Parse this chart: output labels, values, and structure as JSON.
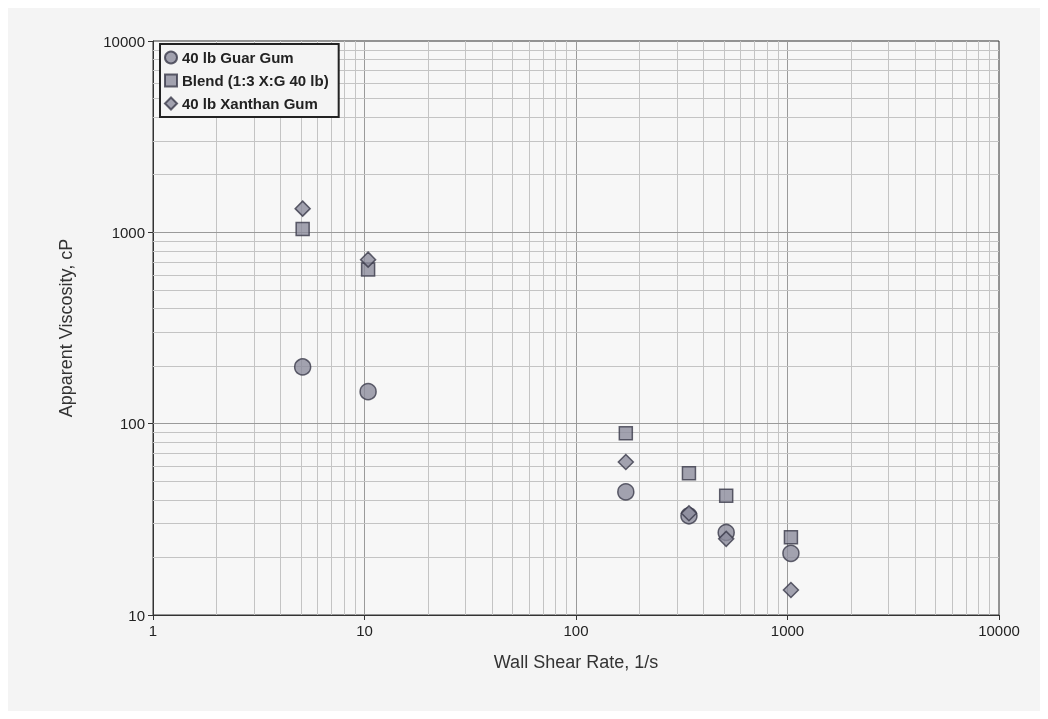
{
  "chart_data": {
    "type": "scatter",
    "xlabel": "Wall Shear Rate, 1/s",
    "ylabel": "Apparent Viscosity, cP",
    "log": "xy",
    "grid": true,
    "legend": "top left",
    "xlim": [
      1,
      10000
    ],
    "xticks": [
      1,
      10,
      100,
      1000,
      10000
    ],
    "ylim": [
      10,
      10000
    ],
    "yticks": [
      10,
      100,
      1000,
      10000
    ],
    "series": [
      {
        "name": "40 lb Guar Gum",
        "color": "#8c8c9c",
        "marker": "circle",
        "x": [
          5.1,
          10.4,
          172,
          342,
          513,
          1038
        ],
        "values": [
          198,
          147,
          44,
          33,
          27,
          21
        ]
      },
      {
        "name": "Blend (1:3 X:G 40 lb)",
        "color": "#8c8c9c",
        "marker": "square",
        "x": [
          5.1,
          10.4,
          172,
          342,
          513,
          1038
        ],
        "values": [
          1040,
          640,
          89,
          55,
          42,
          25.5
        ]
      },
      {
        "name": "40 lb Xanthan Gum",
        "color": "#8c8c9c",
        "marker": "diamond",
        "x": [
          5.1,
          10.4,
          172,
          342,
          513,
          1038
        ],
        "values": [
          1330,
          720,
          63,
          34,
          25,
          13.5
        ]
      }
    ]
  }
}
